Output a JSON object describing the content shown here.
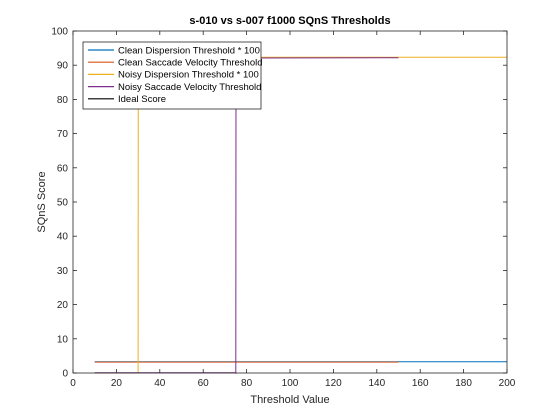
{
  "chart_data": {
    "type": "line",
    "title": "s-010 vs s-007 f1000 SQnS Thresholds",
    "xlabel": "Threshold Value",
    "ylabel": "SQnS Score",
    "xlim": [
      0,
      200
    ],
    "ylim": [
      0,
      100
    ],
    "x_ticks": [
      0,
      20,
      40,
      60,
      80,
      100,
      120,
      140,
      160,
      180,
      200
    ],
    "y_ticks": [
      0,
      10,
      20,
      30,
      40,
      50,
      60,
      70,
      80,
      90,
      100
    ],
    "grid": false,
    "legend_position": "top-left",
    "series": [
      {
        "name": "Clean Dispersion Threshold * 100",
        "color": "#0072BD",
        "x": [
          10,
          200
        ],
        "y": [
          3.3,
          3.3
        ]
      },
      {
        "name": "Clean Saccade Velocity Threshold",
        "color": "#D95319",
        "x": [
          10,
          150
        ],
        "y": [
          3.2,
          3.2
        ]
      },
      {
        "name": "Noisy Dispersion Threshold * 100",
        "color": "#EDB120",
        "x": [
          10,
          29.9,
          30,
          30.1,
          200
        ],
        "y": [
          0,
          0,
          0,
          92.3,
          92.3
        ]
      },
      {
        "name": "Noisy Saccade Velocity Threshold",
        "color": "#7E2F8E",
        "x": [
          10,
          73,
          74.9,
          75,
          75.1,
          150
        ],
        "y": [
          0.1,
          0.1,
          0.1,
          0,
          92.1,
          92.2
        ]
      },
      {
        "name": "Ideal Score",
        "color": "#000000",
        "x": [],
        "y": []
      }
    ]
  }
}
